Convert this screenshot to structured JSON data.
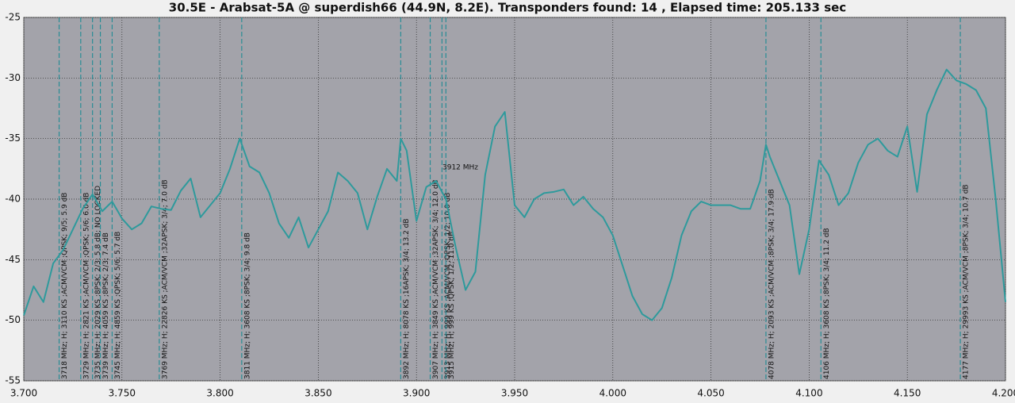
{
  "chart_data": {
    "type": "line",
    "title": "30.5E - Arabsat-5A @ superdish66 (44.9N, 8.2E). Transponders found: 14 , Elapsed time: 205.133 sec",
    "x": [
      3.7,
      3.705,
      3.71,
      3.715,
      3.72,
      3.725,
      3.73,
      3.735,
      3.74,
      3.745,
      3.75,
      3.755,
      3.76,
      3.765,
      3.77,
      3.775,
      3.78,
      3.785,
      3.79,
      3.795,
      3.8,
      3.805,
      3.81,
      3.815,
      3.82,
      3.825,
      3.83,
      3.835,
      3.84,
      3.845,
      3.85,
      3.855,
      3.86,
      3.865,
      3.87,
      3.875,
      3.88,
      3.885,
      3.89,
      3.892,
      3.895,
      3.9,
      3.905,
      3.91,
      3.915,
      3.92,
      3.925,
      3.93,
      3.935,
      3.94,
      3.945,
      3.95,
      3.955,
      3.96,
      3.965,
      3.97,
      3.975,
      3.98,
      3.985,
      3.99,
      3.995,
      4.0,
      4.005,
      4.01,
      4.015,
      4.02,
      4.025,
      4.03,
      4.035,
      4.04,
      4.045,
      4.05,
      4.055,
      4.06,
      4.065,
      4.07,
      4.075,
      4.078,
      4.08,
      4.085,
      4.09,
      4.095,
      4.1,
      4.105,
      4.11,
      4.115,
      4.12,
      4.125,
      4.13,
      4.135,
      4.14,
      4.145,
      4.15,
      4.155,
      4.16,
      4.165,
      4.17,
      4.175,
      4.18,
      4.185,
      4.19,
      4.195,
      4.2
    ],
    "series": [
      {
        "color": "#2e9a9c",
        "values": [
          -49.6,
          -47.2,
          -48.5,
          -45.3,
          -44.2,
          -42.5,
          -40.8,
          -39.6,
          -41.0,
          -40.2,
          -41.6,
          -42.5,
          -42.0,
          -40.6,
          -40.8,
          -40.9,
          -39.3,
          -38.3,
          -41.5,
          -40.5,
          -39.5,
          -37.5,
          -35.0,
          -37.3,
          -37.8,
          -39.5,
          -42.0,
          -43.2,
          -41.5,
          -44.0,
          -42.5,
          -41.0,
          -37.8,
          -38.5,
          -39.5,
          -42.5,
          -39.8,
          -37.5,
          -38.5,
          -35.0,
          -36.0,
          -41.8,
          -39.0,
          -38.5,
          -40.0,
          -44.0,
          -47.5,
          -46.0,
          -38.0,
          -34.0,
          -32.8,
          -40.5,
          -41.5,
          -40.0,
          -39.5,
          -39.4,
          -39.2,
          -40.5,
          -39.8,
          -40.8,
          -41.5,
          -43.0,
          -45.5,
          -48.0,
          -49.5,
          -50.0,
          -49.0,
          -46.5,
          -43.0,
          -41.0,
          -40.2,
          -40.5,
          -40.5,
          -40.5,
          -40.8,
          -40.8,
          -38.5,
          -35.5,
          -36.5,
          -38.5,
          -40.5,
          -46.2,
          -42.5,
          -36.8,
          -38.0,
          -40.5,
          -39.5,
          -37.0,
          -35.5,
          -35.0,
          -36.0,
          -36.5,
          -34.0,
          -39.4,
          -33.0,
          -31.0,
          -29.3,
          -30.2,
          -30.5,
          -31.0,
          -32.5,
          -40.0,
          -48.5
        ]
      }
    ],
    "markers": [
      {
        "x": 3.718,
        "label": "3718 MHz; H; 3110 KS ;ACM/VCM ;QPSK; 9/5; 5.9 dB"
      },
      {
        "x": 3.729,
        "label": "3729 MHz; H; 2821 KS ;ACM/VCM ;QPSK; 5/6; 6.0 dB"
      },
      {
        "x": 3.735,
        "label": "3735 MHz; H; 2029 KS ;8PSK; 2/3; 5.8 dB; NO LOCKED"
      },
      {
        "x": 3.739,
        "label": "3739 MHz; H; 4059 KS ;8PSK; 2/3; 7.4 dB"
      },
      {
        "x": 3.745,
        "label": "3745 MHz; H; 4859 KS ;QPSK; 5/6; 5.7 dB"
      },
      {
        "x": 3.769,
        "label": "3769 MHz; H; 22826 KS ;ACM/VCM ;32APSK; 3/4; 7.0 dB"
      },
      {
        "x": 3.811,
        "label": "3811 MHz; H; 3608 KS ;8PSK; 3/4; 9.8 dB"
      },
      {
        "x": 3.892,
        "label": "3892 MHz; H; 8078 KS ;16APSK; 3/4; 13.2 dB"
      },
      {
        "x": 3.907,
        "label": "3907 MHz; H; 3849 KS ;ACM/VCM ;32APSK; 3/4; 12.0 dB"
      },
      {
        "x": 3.913,
        "label": "3913 MHz; H; 999 KS ;ACM/VCM ;QPSK; 1/2; 10.0 dB"
      },
      {
        "x": 3.915,
        "label": "3915 MHz; H; 999 KS ;QPSK; 1/2; 11.0 dB"
      },
      {
        "x": 4.078,
        "label": "4078 MHz; H; 2093 KS ;ACM/VCM ;8PSK; 3/4; 17.9 dB"
      },
      {
        "x": 4.106,
        "label": "4106 MHz; H; 3608 KS ;8PSK; 3/4; 11.2 dB"
      },
      {
        "x": 4.177,
        "label": "4177 MHz; H; 29993 KS ;ACM/VCM ;8PSK; 3/4; 10.7 dB"
      }
    ],
    "annotation": "3912 MHz",
    "xlim": [
      3.7,
      4.2
    ],
    "xticks": [
      {
        "value": 3.7,
        "label": "3.700"
      },
      {
        "value": 3.75,
        "label": "3.750"
      },
      {
        "value": 3.8,
        "label": "3.800"
      },
      {
        "value": 3.85,
        "label": "3.850"
      },
      {
        "value": 3.9,
        "label": "3.900"
      },
      {
        "value": 3.95,
        "label": "3.950"
      },
      {
        "value": 4.0,
        "label": "4.000"
      },
      {
        "value": 4.05,
        "label": "4.050"
      },
      {
        "value": 4.1,
        "label": "4.100"
      },
      {
        "value": 4.15,
        "label": "4.150"
      },
      {
        "value": 4.2,
        "label": "4.200"
      }
    ],
    "ylim": [
      -55,
      -25
    ],
    "yticks": [
      -55,
      -50,
      -45,
      -40,
      -35,
      -30,
      -25
    ],
    "grid": true
  }
}
